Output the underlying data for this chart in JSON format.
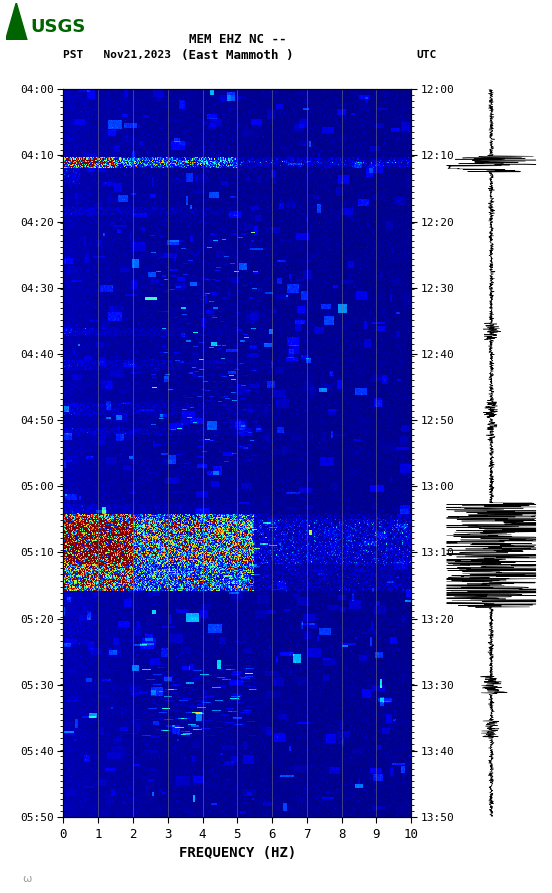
{
  "title_line1": "MEM EHZ NC --",
  "title_line2": "(East Mammoth )",
  "pst_label": "PST   Nov21,2023",
  "utc_label": "UTC",
  "left_yticks": [
    "04:00",
    "04:10",
    "04:20",
    "04:30",
    "04:40",
    "04:50",
    "05:00",
    "05:10",
    "05:20",
    "05:30",
    "05:40",
    "05:50"
  ],
  "right_yticks": [
    "12:00",
    "12:10",
    "12:20",
    "12:30",
    "12:40",
    "12:50",
    "13:00",
    "13:10",
    "13:20",
    "13:30",
    "13:40",
    "13:50"
  ],
  "xticks": [
    0,
    1,
    2,
    3,
    4,
    5,
    6,
    7,
    8,
    9,
    10
  ],
  "xlabel": "FREQUENCY (HZ)",
  "freq_min": 0,
  "freq_max": 10,
  "n_time": 660,
  "n_freq": 360,
  "grid_color": "#808080",
  "grid_alpha": 0.6,
  "usgs_color": "#006400"
}
